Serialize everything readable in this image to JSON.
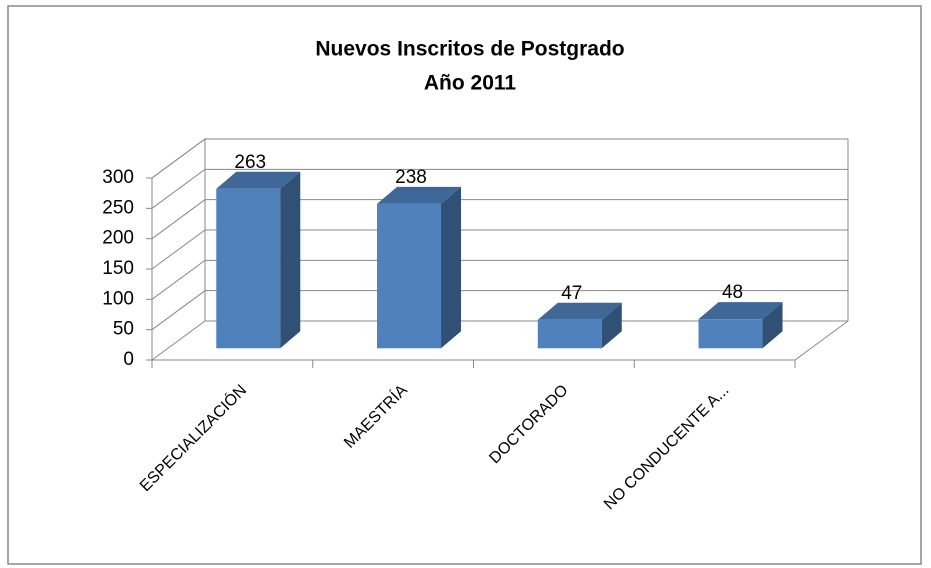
{
  "chart_data": {
    "type": "bar3d",
    "title": "Nuevos Inscritos de Postgrado",
    "subtitle": "Año 2011",
    "categories": [
      "ESPECIALIZACIÓN",
      "MAESTRÍA",
      "DOCTORADO",
      "NO CONDUCENTE A..."
    ],
    "values": [
      263,
      238,
      47,
      48
    ],
    "color": "#4f81bd",
    "ylim": [
      0,
      300
    ],
    "yticks": [
      0,
      50,
      100,
      150,
      200,
      250,
      300
    ],
    "grid": true
  }
}
